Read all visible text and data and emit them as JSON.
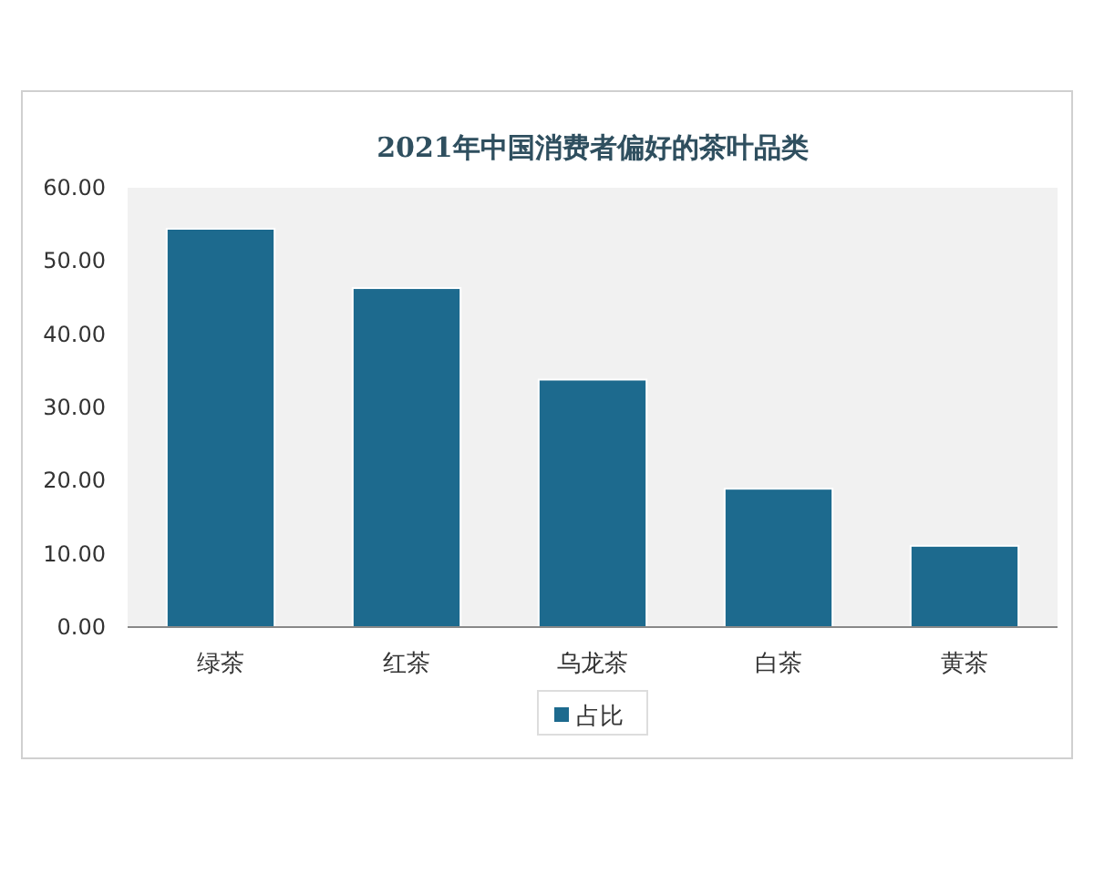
{
  "chart_data": {
    "type": "bar",
    "title": "2021年中国消费者偏好的茶叶品类",
    "categories": [
      "绿茶",
      "红茶",
      "乌龙茶",
      "白茶",
      "黄茶"
    ],
    "series": [
      {
        "name": "占比",
        "color": "#1d6a8e",
        "values": [
          54.4,
          46.3,
          33.8,
          18.9,
          11.1
        ]
      }
    ],
    "ylim": [
      0,
      60
    ],
    "yticks": [
      {
        "value": 0,
        "label": "0.00"
      },
      {
        "value": 10,
        "label": "10.00"
      },
      {
        "value": 20,
        "label": "20.00"
      },
      {
        "value": 30,
        "label": "30.00"
      },
      {
        "value": 40,
        "label": "40.00"
      },
      {
        "value": 50,
        "label": "50.00"
      },
      {
        "value": 60,
        "label": "60.00"
      }
    ],
    "legend": "bottom"
  }
}
